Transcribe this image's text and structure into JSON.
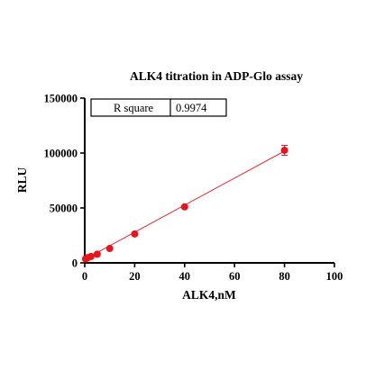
{
  "chart_data": {
    "type": "scatter",
    "title": "ALK4 titration in ADP-Glo assay",
    "xlabel": "ALK4,nM",
    "ylabel": "RLU",
    "xlim": [
      0,
      100
    ],
    "ylim": [
      0,
      150000
    ],
    "x_ticks": [
      0,
      20,
      40,
      60,
      80,
      100
    ],
    "y_ticks": [
      0,
      50000,
      100000,
      150000
    ],
    "x_tick_labels": [
      "0",
      "20",
      "40",
      "60",
      "80",
      "100"
    ],
    "y_tick_labels": [
      "0",
      "50000",
      "100000",
      "150000"
    ],
    "grid": false,
    "series": [
      {
        "x": [
          0.3125,
          0.625,
          1.25,
          2.5,
          5,
          10,
          20,
          40,
          80
        ],
        "y": [
          3600,
          4000,
          4800,
          5800,
          7900,
          13100,
          26300,
          51000,
          102500
        ],
        "errors": [
          200,
          200,
          300,
          300,
          400,
          500,
          700,
          1200,
          4500
        ],
        "color": "#e8131b"
      }
    ],
    "fit_line": {
      "x": [
        0,
        80
      ],
      "y": [
        3300,
        101800
      ],
      "color": "#e8131b"
    },
    "stats_table": {
      "label": "R square",
      "value": "0.9974"
    }
  }
}
